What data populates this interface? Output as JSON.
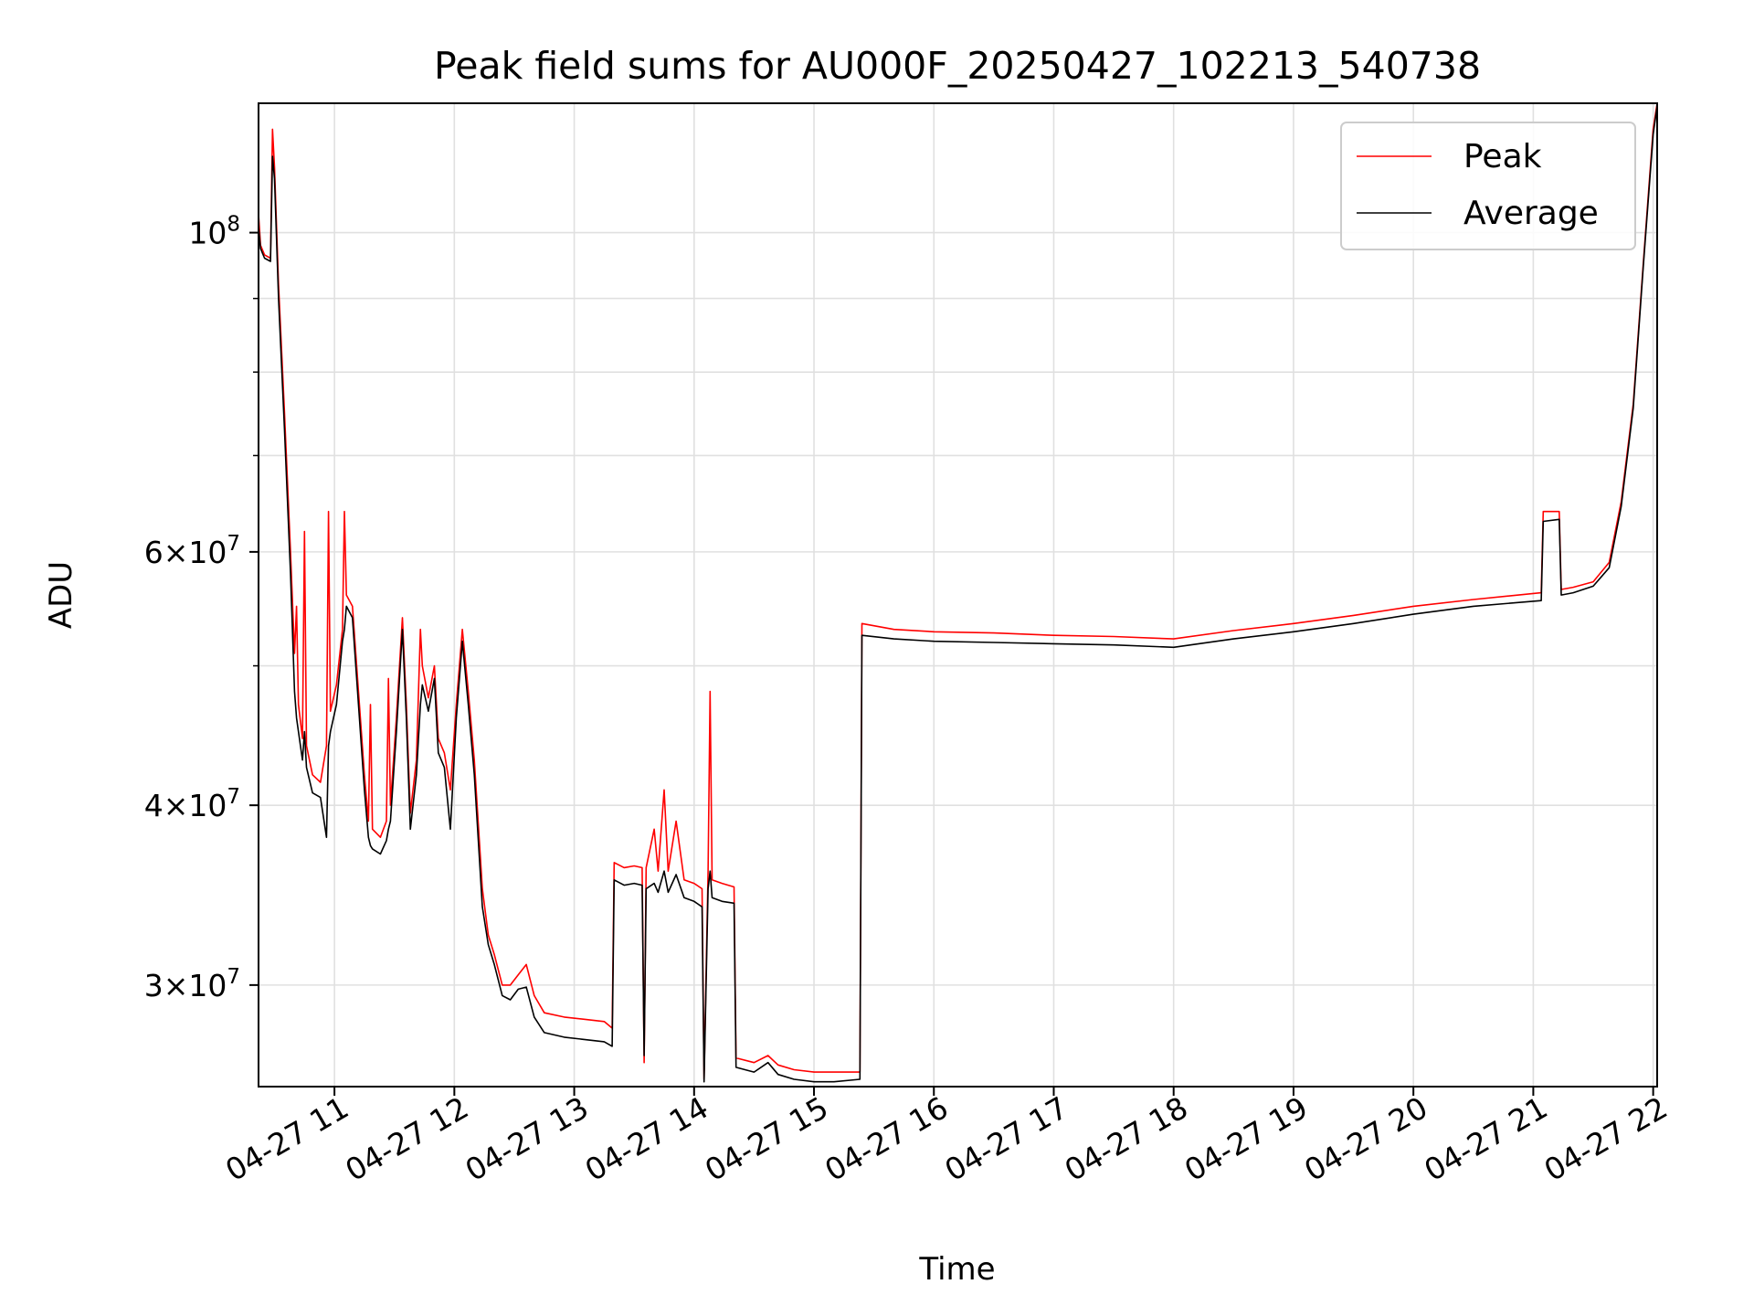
{
  "chart_data": {
    "type": "line",
    "title": "Peak field sums for AU000F_20250427_102213_540738",
    "xlabel": "Time",
    "ylabel": "ADU",
    "xlim": [
      "2025-04-27 10:22",
      "2025-04-27 22:02"
    ],
    "ylim": [
      25500000,
      123000000
    ],
    "yscale": "log",
    "grid": true,
    "legend_position": "top-right",
    "x_ticks": [
      {
        "value": "2025-04-27 11:00",
        "label": "04-27 11"
      },
      {
        "value": "2025-04-27 12:00",
        "label": "04-27 12"
      },
      {
        "value": "2025-04-27 13:00",
        "label": "04-27 13"
      },
      {
        "value": "2025-04-27 14:00",
        "label": "04-27 14"
      },
      {
        "value": "2025-04-27 15:00",
        "label": "04-27 15"
      },
      {
        "value": "2025-04-27 16:00",
        "label": "04-27 16"
      },
      {
        "value": "2025-04-27 17:00",
        "label": "04-27 17"
      },
      {
        "value": "2025-04-27 18:00",
        "label": "04-27 18"
      },
      {
        "value": "2025-04-27 19:00",
        "label": "04-27 19"
      },
      {
        "value": "2025-04-27 20:00",
        "label": "04-27 20"
      },
      {
        "value": "2025-04-27 21:00",
        "label": "04-27 21"
      },
      {
        "value": "2025-04-27 22:00",
        "label": "04-27 22"
      }
    ],
    "y_ticks": [
      {
        "value": 30000000,
        "base": "3×10",
        "exp": "7"
      },
      {
        "value": 40000000,
        "base": "4×10",
        "exp": "7"
      },
      {
        "value": 60000000,
        "base": "6×10",
        "exp": "7"
      },
      {
        "value": 100000000,
        "base": "10",
        "exp": "8"
      }
    ],
    "series": [
      {
        "name": "Peak",
        "color": "#ff0000",
        "points": [
          [
            "2025-04-27 10:22",
            103000000
          ],
          [
            "2025-04-27 10:23",
            98000000
          ],
          [
            "2025-04-27 10:25",
            96500000
          ],
          [
            "2025-04-27 10:28",
            96000000
          ],
          [
            "2025-04-27 10:29",
            118000000
          ],
          [
            "2025-04-27 10:30",
            111000000
          ],
          [
            "2025-04-27 10:32",
            92000000
          ],
          [
            "2025-04-27 10:35",
            75000000
          ],
          [
            "2025-04-27 10:38",
            60000000
          ],
          [
            "2025-04-27 10:40",
            51000000
          ],
          [
            "2025-04-27 10:41",
            55000000
          ],
          [
            "2025-04-27 10:42",
            47000000
          ],
          [
            "2025-04-27 10:44",
            44500000
          ],
          [
            "2025-04-27 10:45",
            62000000
          ],
          [
            "2025-04-27 10:46",
            44000000
          ],
          [
            "2025-04-27 10:49",
            42000000
          ],
          [
            "2025-04-27 10:53",
            41500000
          ],
          [
            "2025-04-27 10:56",
            44000000
          ],
          [
            "2025-04-27 10:57",
            64000000
          ],
          [
            "2025-04-27 10:58",
            46500000
          ],
          [
            "2025-04-27 11:01",
            48500000
          ],
          [
            "2025-04-27 11:04",
            53000000
          ],
          [
            "2025-04-27 11:05",
            64000000
          ],
          [
            "2025-04-27 11:06",
            56000000
          ],
          [
            "2025-04-27 11:09",
            55000000
          ],
          [
            "2025-04-27 11:12",
            48000000
          ],
          [
            "2025-04-27 11:15",
            42000000
          ],
          [
            "2025-04-27 11:17",
            39000000
          ],
          [
            "2025-04-27 11:18",
            47000000
          ],
          [
            "2025-04-27 11:19",
            38500000
          ],
          [
            "2025-04-27 11:23",
            38000000
          ],
          [
            "2025-04-27 11:26",
            39000000
          ],
          [
            "2025-04-27 11:27",
            49000000
          ],
          [
            "2025-04-27 11:28",
            40000000
          ],
          [
            "2025-04-27 11:31",
            46000000
          ],
          [
            "2025-04-27 11:34",
            54000000
          ],
          [
            "2025-04-27 11:36",
            47000000
          ],
          [
            "2025-04-27 11:38",
            39500000
          ],
          [
            "2025-04-27 11:41",
            43000000
          ],
          [
            "2025-04-27 11:43",
            53000000
          ],
          [
            "2025-04-27 11:44",
            50000000
          ],
          [
            "2025-04-27 11:47",
            47500000
          ],
          [
            "2025-04-27 11:50",
            50000000
          ],
          [
            "2025-04-27 11:52",
            44500000
          ],
          [
            "2025-04-27 11:55",
            43500000
          ],
          [
            "2025-04-27 11:58",
            41000000
          ],
          [
            "2025-04-27 12:01",
            47000000
          ],
          [
            "2025-04-27 12:04",
            53000000
          ],
          [
            "2025-04-27 12:07",
            48000000
          ],
          [
            "2025-04-27 12:10",
            43000000
          ],
          [
            "2025-04-27 12:14",
            35000000
          ],
          [
            "2025-04-27 12:17",
            32500000
          ],
          [
            "2025-04-27 12:20",
            31500000
          ],
          [
            "2025-04-27 12:24",
            30000000
          ],
          [
            "2025-04-27 12:28",
            30000000
          ],
          [
            "2025-04-27 12:32",
            30500000
          ],
          [
            "2025-04-27 12:36",
            31000000
          ],
          [
            "2025-04-27 12:40",
            29500000
          ],
          [
            "2025-04-27 12:45",
            28700000
          ],
          [
            "2025-04-27 12:55",
            28500000
          ],
          [
            "2025-04-27 13:05",
            28400000
          ],
          [
            "2025-04-27 13:15",
            28300000
          ],
          [
            "2025-04-27 13:19",
            28000000
          ],
          [
            "2025-04-27 13:20",
            36500000
          ],
          [
            "2025-04-27 13:25",
            36200000
          ],
          [
            "2025-04-27 13:30",
            36300000
          ],
          [
            "2025-04-27 13:34",
            36200000
          ],
          [
            "2025-04-27 13:35",
            26500000
          ],
          [
            "2025-04-27 13:36",
            36200000
          ],
          [
            "2025-04-27 13:40",
            38500000
          ],
          [
            "2025-04-27 13:42",
            36000000
          ],
          [
            "2025-04-27 13:45",
            41000000
          ],
          [
            "2025-04-27 13:47",
            36000000
          ],
          [
            "2025-04-27 13:51",
            39000000
          ],
          [
            "2025-04-27 13:55",
            35500000
          ],
          [
            "2025-04-27 14:00",
            35300000
          ],
          [
            "2025-04-27 14:04",
            35000000
          ],
          [
            "2025-04-27 14:05",
            25800000
          ],
          [
            "2025-04-27 14:07",
            36000000
          ],
          [
            "2025-04-27 14:08",
            48000000
          ],
          [
            "2025-04-27 14:09",
            35500000
          ],
          [
            "2025-04-27 14:14",
            35300000
          ],
          [
            "2025-04-27 14:20",
            35100000
          ],
          [
            "2025-04-27 14:21",
            26700000
          ],
          [
            "2025-04-27 14:30",
            26500000
          ],
          [
            "2025-04-27 14:37",
            26800000
          ],
          [
            "2025-04-27 14:42",
            26400000
          ],
          [
            "2025-04-27 14:50",
            26200000
          ],
          [
            "2025-04-27 15:00",
            26100000
          ],
          [
            "2025-04-27 15:10",
            26100000
          ],
          [
            "2025-04-27 15:23",
            26100000
          ],
          [
            "2025-04-27 15:24",
            53500000
          ],
          [
            "2025-04-27 15:40",
            53000000
          ],
          [
            "2025-04-27 16:00",
            52800000
          ],
          [
            "2025-04-27 16:30",
            52700000
          ],
          [
            "2025-04-27 17:00",
            52500000
          ],
          [
            "2025-04-27 17:30",
            52400000
          ],
          [
            "2025-04-27 18:00",
            52200000
          ],
          [
            "2025-04-27 18:30",
            52900000
          ],
          [
            "2025-04-27 19:00",
            53500000
          ],
          [
            "2025-04-27 19:30",
            54200000
          ],
          [
            "2025-04-27 20:00",
            55000000
          ],
          [
            "2025-04-27 20:30",
            55600000
          ],
          [
            "2025-04-27 21:04",
            56200000
          ],
          [
            "2025-04-27 21:05",
            64000000
          ],
          [
            "2025-04-27 21:13",
            64000000
          ],
          [
            "2025-04-27 21:14",
            56500000
          ],
          [
            "2025-04-27 21:20",
            56700000
          ],
          [
            "2025-04-27 21:30",
            57200000
          ],
          [
            "2025-04-27 21:38",
            59000000
          ],
          [
            "2025-04-27 21:44",
            65000000
          ],
          [
            "2025-04-27 21:50",
            76000000
          ],
          [
            "2025-04-27 21:55",
            95000000
          ],
          [
            "2025-04-27 22:00",
            118000000
          ],
          [
            "2025-04-27 22:02",
            123000000
          ]
        ]
      },
      {
        "name": "Average",
        "color": "#000000",
        "points": [
          [
            "2025-04-27 10:22",
            101000000
          ],
          [
            "2025-04-27 10:23",
            97500000
          ],
          [
            "2025-04-27 10:25",
            96000000
          ],
          [
            "2025-04-27 10:28",
            95500000
          ],
          [
            "2025-04-27 10:29",
            113000000
          ],
          [
            "2025-04-27 10:30",
            109000000
          ],
          [
            "2025-04-27 10:32",
            90000000
          ],
          [
            "2025-04-27 10:35",
            73000000
          ],
          [
            "2025-04-27 10:38",
            58000000
          ],
          [
            "2025-04-27 10:40",
            48000000
          ],
          [
            "2025-04-27 10:41",
            46000000
          ],
          [
            "2025-04-27 10:42",
            45000000
          ],
          [
            "2025-04-27 10:44",
            43000000
          ],
          [
            "2025-04-27 10:45",
            45000000
          ],
          [
            "2025-04-27 10:46",
            42500000
          ],
          [
            "2025-04-27 10:49",
            40800000
          ],
          [
            "2025-04-27 10:53",
            40500000
          ],
          [
            "2025-04-27 10:56",
            38000000
          ],
          [
            "2025-04-27 10:57",
            44000000
          ],
          [
            "2025-04-27 10:58",
            45000000
          ],
          [
            "2025-04-27 11:01",
            47000000
          ],
          [
            "2025-04-27 11:04",
            52000000
          ],
          [
            "2025-04-27 11:05",
            53000000
          ],
          [
            "2025-04-27 11:06",
            55000000
          ],
          [
            "2025-04-27 11:09",
            54000000
          ],
          [
            "2025-04-27 11:12",
            47000000
          ],
          [
            "2025-04-27 11:15",
            41000000
          ],
          [
            "2025-04-27 11:17",
            38000000
          ],
          [
            "2025-04-27 11:18",
            37500000
          ],
          [
            "2025-04-27 11:19",
            37300000
          ],
          [
            "2025-04-27 11:23",
            37000000
          ],
          [
            "2025-04-27 11:26",
            37800000
          ],
          [
            "2025-04-27 11:27",
            38500000
          ],
          [
            "2025-04-27 11:28",
            39000000
          ],
          [
            "2025-04-27 11:31",
            45000000
          ],
          [
            "2025-04-27 11:34",
            53000000
          ],
          [
            "2025-04-27 11:36",
            46000000
          ],
          [
            "2025-04-27 11:38",
            38500000
          ],
          [
            "2025-04-27 11:41",
            42000000
          ],
          [
            "2025-04-27 11:43",
            47000000
          ],
          [
            "2025-04-27 11:44",
            48500000
          ],
          [
            "2025-04-27 11:47",
            46500000
          ],
          [
            "2025-04-27 11:50",
            49000000
          ],
          [
            "2025-04-27 11:52",
            43500000
          ],
          [
            "2025-04-27 11:55",
            42500000
          ],
          [
            "2025-04-27 11:58",
            38500000
          ],
          [
            "2025-04-27 12:01",
            46000000
          ],
          [
            "2025-04-27 12:04",
            52000000
          ],
          [
            "2025-04-27 12:07",
            47000000
          ],
          [
            "2025-04-27 12:10",
            42000000
          ],
          [
            "2025-04-27 12:14",
            34000000
          ],
          [
            "2025-04-27 12:17",
            32000000
          ],
          [
            "2025-04-27 12:20",
            31000000
          ],
          [
            "2025-04-27 12:24",
            29500000
          ],
          [
            "2025-04-27 12:28",
            29300000
          ],
          [
            "2025-04-27 12:32",
            29800000
          ],
          [
            "2025-04-27 12:36",
            29900000
          ],
          [
            "2025-04-27 12:40",
            28500000
          ],
          [
            "2025-04-27 12:45",
            27800000
          ],
          [
            "2025-04-27 12:55",
            27600000
          ],
          [
            "2025-04-27 13:05",
            27500000
          ],
          [
            "2025-04-27 13:15",
            27400000
          ],
          [
            "2025-04-27 13:19",
            27200000
          ],
          [
            "2025-04-27 13:20",
            35500000
          ],
          [
            "2025-04-27 13:25",
            35200000
          ],
          [
            "2025-04-27 13:30",
            35300000
          ],
          [
            "2025-04-27 13:34",
            35200000
          ],
          [
            "2025-04-27 13:35",
            26800000
          ],
          [
            "2025-04-27 13:36",
            35000000
          ],
          [
            "2025-04-27 13:40",
            35300000
          ],
          [
            "2025-04-27 13:42",
            34800000
          ],
          [
            "2025-04-27 13:45",
            36000000
          ],
          [
            "2025-04-27 13:47",
            34800000
          ],
          [
            "2025-04-27 13:51",
            35800000
          ],
          [
            "2025-04-27 13:55",
            34500000
          ],
          [
            "2025-04-27 14:00",
            34300000
          ],
          [
            "2025-04-27 14:04",
            34000000
          ],
          [
            "2025-04-27 14:05",
            25700000
          ],
          [
            "2025-04-27 14:07",
            35000000
          ],
          [
            "2025-04-27 14:08",
            36000000
          ],
          [
            "2025-04-27 14:09",
            34500000
          ],
          [
            "2025-04-27 14:14",
            34300000
          ],
          [
            "2025-04-27 14:20",
            34200000
          ],
          [
            "2025-04-27 14:21",
            26300000
          ],
          [
            "2025-04-27 14:30",
            26100000
          ],
          [
            "2025-04-27 14:37",
            26500000
          ],
          [
            "2025-04-27 14:42",
            26000000
          ],
          [
            "2025-04-27 14:50",
            25800000
          ],
          [
            "2025-04-27 15:00",
            25700000
          ],
          [
            "2025-04-27 15:10",
            25700000
          ],
          [
            "2025-04-27 15:23",
            25800000
          ],
          [
            "2025-04-27 15:24",
            52500000
          ],
          [
            "2025-04-27 15:40",
            52200000
          ],
          [
            "2025-04-27 16:00",
            52000000
          ],
          [
            "2025-04-27 16:30",
            51900000
          ],
          [
            "2025-04-27 17:00",
            51800000
          ],
          [
            "2025-04-27 17:30",
            51700000
          ],
          [
            "2025-04-27 18:00",
            51500000
          ],
          [
            "2025-04-27 18:30",
            52200000
          ],
          [
            "2025-04-27 19:00",
            52800000
          ],
          [
            "2025-04-27 19:30",
            53500000
          ],
          [
            "2025-04-27 20:00",
            54300000
          ],
          [
            "2025-04-27 20:30",
            55000000
          ],
          [
            "2025-04-27 21:04",
            55500000
          ],
          [
            "2025-04-27 21:05",
            63000000
          ],
          [
            "2025-04-27 21:13",
            63200000
          ],
          [
            "2025-04-27 21:14",
            56000000
          ],
          [
            "2025-04-27 21:20",
            56200000
          ],
          [
            "2025-04-27 21:30",
            56800000
          ],
          [
            "2025-04-27 21:38",
            58500000
          ],
          [
            "2025-04-27 21:44",
            64500000
          ],
          [
            "2025-04-27 21:50",
            75500000
          ],
          [
            "2025-04-27 21:55",
            94500000
          ],
          [
            "2025-04-27 22:00",
            117000000
          ],
          [
            "2025-04-27 22:02",
            122500000
          ]
        ]
      }
    ]
  }
}
